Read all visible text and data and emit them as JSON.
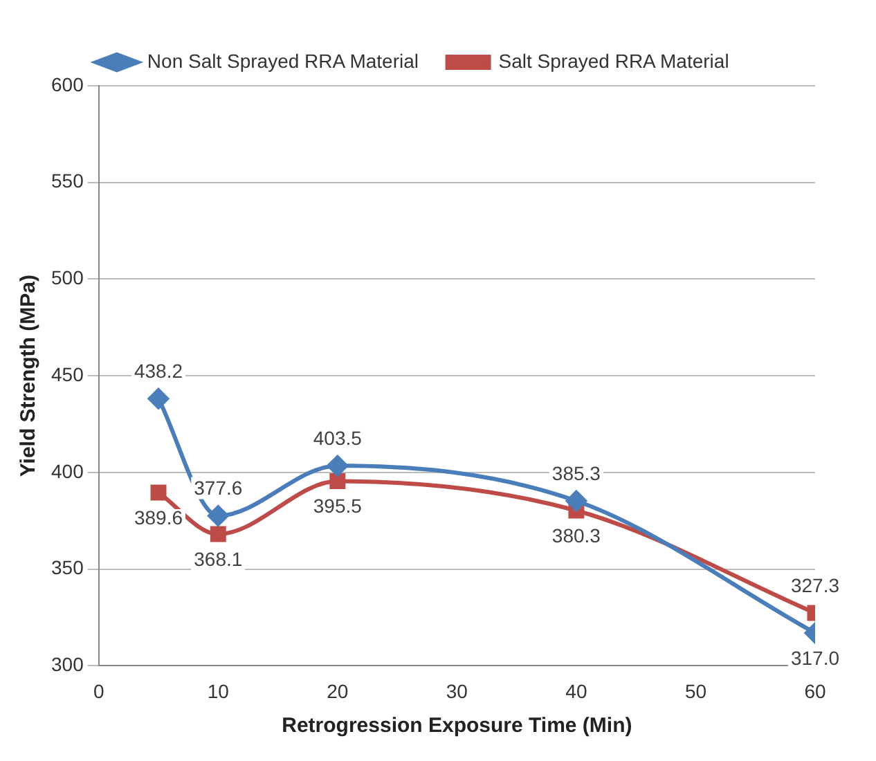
{
  "chart_data": {
    "type": "line",
    "xlabel": "Retrogression Exposure Time (Min)",
    "ylabel": "Yield Strength (MPa)",
    "x": [
      5,
      10,
      20,
      40,
      60
    ],
    "series": [
      {
        "name": "Non Salt Sprayed RRA Material",
        "color": "#4a7ebb",
        "marker": "diamond",
        "values": [
          438.2,
          377.6,
          403.5,
          385.3,
          317.0
        ],
        "value_labels": [
          "438.2",
          "377.6",
          "403.5",
          "385.3",
          "317.0"
        ]
      },
      {
        "name": "Salt Sprayed RRA Material",
        "color": "#be4b48",
        "marker": "square",
        "values": [
          389.6,
          368.1,
          395.5,
          380.3,
          327.3
        ],
        "value_labels": [
          "389.6",
          "368.1",
          "395.5",
          "380.3",
          "327.3"
        ]
      }
    ],
    "xlim": [
      0,
      60
    ],
    "xticks": [
      0,
      10,
      20,
      30,
      40,
      50,
      60
    ],
    "ylim": [
      300,
      600
    ],
    "yticks": [
      300,
      350,
      400,
      450,
      500,
      550,
      600
    ],
    "grid": "y",
    "legend": "top"
  }
}
